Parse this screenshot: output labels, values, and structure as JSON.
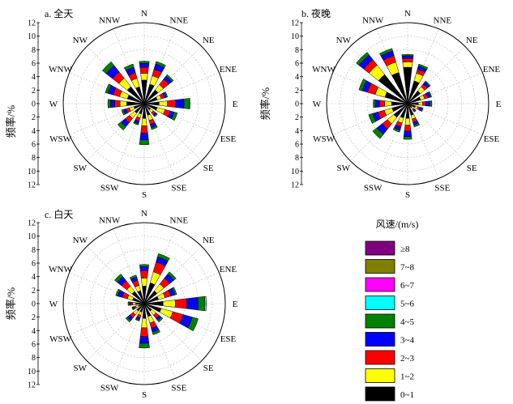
{
  "chart_data": {
    "type": "polar-stacked-bar",
    "directions": [
      "N",
      "NNE",
      "NE",
      "ENE",
      "E",
      "ESE",
      "SE",
      "SSE",
      "S",
      "SSW",
      "SW",
      "WSW",
      "W",
      "WNW",
      "NW",
      "NNW"
    ],
    "speed_classes": [
      "0~1",
      "1~2",
      "2~3",
      "3~4",
      "4~5",
      "5~6",
      "6~7",
      "7~8",
      "≥8"
    ],
    "class_colors": [
      "#000000",
      "#ffff00",
      "#ff0000",
      "#0000ff",
      "#008000",
      "#00ffff",
      "#ff00ff",
      "#808000",
      "#800080"
    ],
    "rlim": [
      0,
      12
    ],
    "radial_ticks": [
      0,
      2,
      4,
      6,
      8,
      10,
      12
    ],
    "axis_label": "频率/%",
    "legend_title": "风速/(m/s)",
    "legend_items": [
      "≥8",
      "7~8",
      "6~7",
      "5~6",
      "4~5",
      "3~4",
      "2~3",
      "1~2",
      "0~1"
    ],
    "panels": [
      {
        "title": "a. 全天",
        "series": [
          {
            "direction": "N",
            "values": [
              3.5,
              1.0,
              0.9,
              0.6,
              0.3,
              0,
              0,
              0,
              0
            ]
          },
          {
            "direction": "NNE",
            "values": [
              3.0,
              1.3,
              1.0,
              0.8,
              0.4,
              0,
              0,
              0,
              0
            ]
          },
          {
            "direction": "NE",
            "values": [
              2.6,
              1.0,
              1.0,
              0.6,
              0.3,
              0,
              0,
              0,
              0
            ]
          },
          {
            "direction": "ENE",
            "values": [
              2.0,
              0.6,
              0.5,
              0.3,
              0.2,
              0,
              0,
              0,
              0
            ]
          },
          {
            "direction": "E",
            "values": [
              2.2,
              1.2,
              1.2,
              1.3,
              0.8,
              0.1,
              0,
              0,
              0
            ]
          },
          {
            "direction": "ESE",
            "values": [
              2.0,
              1.2,
              0.8,
              0.6,
              0.5,
              0,
              0,
              0,
              0
            ]
          },
          {
            "direction": "SE",
            "values": [
              1.2,
              0.5,
              0.4,
              0.2,
              0.2,
              0,
              0,
              0,
              0
            ]
          },
          {
            "direction": "SSE",
            "values": [
              1.8,
              0.8,
              0.6,
              0.5,
              0.3,
              0,
              0,
              0,
              0
            ]
          },
          {
            "direction": "S",
            "values": [
              2.2,
              1.1,
              1.1,
              1.0,
              0.7,
              0,
              0,
              0,
              0
            ]
          },
          {
            "direction": "SSW",
            "values": [
              1.6,
              0.6,
              0.5,
              0.4,
              0.2,
              0,
              0,
              0,
              0
            ]
          },
          {
            "direction": "SW",
            "values": [
              1.8,
              1.0,
              0.8,
              0.8,
              0.6,
              0,
              0,
              0,
              0
            ]
          },
          {
            "direction": "WSW",
            "values": [
              1.6,
              0.7,
              0.5,
              0.4,
              0.3,
              0,
              0,
              0,
              0
            ]
          },
          {
            "direction": "W",
            "values": [
              2.6,
              1.0,
              0.8,
              0.6,
              0.4,
              0,
              0,
              0,
              0
            ]
          },
          {
            "direction": "WNW",
            "values": [
              2.6,
              1.2,
              1.0,
              0.8,
              0.4,
              0,
              0,
              0,
              0
            ]
          },
          {
            "direction": "NW",
            "values": [
              3.2,
              1.6,
              1.2,
              1.2,
              0.7,
              0,
              0,
              0,
              0
            ]
          },
          {
            "direction": "NNW",
            "values": [
              2.6,
              1.3,
              0.9,
              0.8,
              0.5,
              0,
              0,
              0,
              0
            ]
          }
        ]
      },
      {
        "title": "b. 夜晚",
        "series": [
          {
            "direction": "N",
            "values": [
              5.4,
              0.8,
              0.5,
              0.4,
              0.2,
              0,
              0,
              0,
              0
            ]
          },
          {
            "direction": "NNE",
            "values": [
              3.5,
              1.2,
              0.6,
              0.5,
              0.3,
              0,
              0,
              0,
              0
            ]
          },
          {
            "direction": "NE",
            "values": [
              2.4,
              0.8,
              0.5,
              0.4,
              0.2,
              0,
              0,
              0,
              0
            ]
          },
          {
            "direction": "ENE",
            "values": [
              2.0,
              0.6,
              0.5,
              0.4,
              0.2,
              0,
              0,
              0,
              0
            ]
          },
          {
            "direction": "E",
            "values": [
              1.6,
              0.6,
              0.5,
              0.6,
              0.3,
              0,
              0,
              0,
              0
            ]
          },
          {
            "direction": "ESE",
            "values": [
              1.2,
              0.4,
              0.3,
              0.3,
              0.2,
              0,
              0,
              0,
              0
            ]
          },
          {
            "direction": "SE",
            "values": [
              0.8,
              0.3,
              0.2,
              0.2,
              0.1,
              0,
              0,
              0,
              0
            ]
          },
          {
            "direction": "SSE",
            "values": [
              1.8,
              0.6,
              0.5,
              0.4,
              0.3,
              0,
              0,
              0,
              0
            ]
          },
          {
            "direction": "S",
            "values": [
              2.2,
              1.0,
              0.9,
              0.8,
              0.4,
              0,
              0,
              0,
              0
            ]
          },
          {
            "direction": "SSW",
            "values": [
              2.2,
              0.8,
              0.6,
              0.5,
              0.3,
              0,
              0,
              0,
              0
            ]
          },
          {
            "direction": "SW",
            "values": [
              2.6,
              1.2,
              1.0,
              1.0,
              0.8,
              0,
              0,
              0,
              0
            ]
          },
          {
            "direction": "WSW",
            "values": [
              2.4,
              1.2,
              1.0,
              0.8,
              0.6,
              0,
              0,
              0,
              0
            ]
          },
          {
            "direction": "W",
            "values": [
              2.4,
              1.0,
              0.8,
              0.6,
              0.3,
              0,
              0,
              0,
              0
            ]
          },
          {
            "direction": "WNW",
            "values": [
              3.5,
              1.5,
              1.2,
              0.8,
              0.5,
              0,
              0,
              0,
              0
            ]
          },
          {
            "direction": "NW",
            "values": [
              5.5,
              1.8,
              1.0,
              0.9,
              0.5,
              0,
              0,
              0,
              0
            ]
          },
          {
            "direction": "NNW",
            "values": [
              4.8,
              1.6,
              1.0,
              0.7,
              0.4,
              0,
              0,
              0,
              0
            ]
          }
        ]
      },
      {
        "title": "c. 白天",
        "series": [
          {
            "direction": "N",
            "values": [
              2.6,
              1.2,
              1.1,
              0.6,
              0.3,
              0,
              0,
              0,
              0
            ]
          },
          {
            "direction": "NNE",
            "values": [
              3.2,
              1.7,
              1.5,
              0.8,
              0.5,
              0,
              0,
              0,
              0
            ]
          },
          {
            "direction": "NE",
            "values": [
              2.4,
              1.3,
              1.1,
              0.8,
              0.4,
              0,
              0,
              0,
              0
            ]
          },
          {
            "direction": "ENE",
            "values": [
              2.2,
              1.0,
              0.9,
              0.6,
              0.3,
              0,
              0,
              0,
              0
            ]
          },
          {
            "direction": "E",
            "values": [
              2.8,
              1.8,
              1.7,
              1.7,
              1.0,
              0.2,
              0,
              0,
              0
            ]
          },
          {
            "direction": "ESE",
            "values": [
              2.6,
              1.8,
              1.6,
              1.4,
              0.9,
              0,
              0,
              0,
              0
            ]
          },
          {
            "direction": "SE",
            "values": [
              1.4,
              0.8,
              0.6,
              0.4,
              0.3,
              0,
              0,
              0,
              0
            ]
          },
          {
            "direction": "SSE",
            "values": [
              2.0,
              1.0,
              0.8,
              0.6,
              0.4,
              0,
              0,
              0,
              0
            ]
          },
          {
            "direction": "S",
            "values": [
              2.2,
              1.4,
              1.3,
              1.0,
              0.7,
              0,
              0,
              0,
              0
            ]
          },
          {
            "direction": "SSW",
            "values": [
              1.3,
              0.5,
              0.4,
              0.3,
              0.2,
              0,
              0,
              0,
              0
            ]
          },
          {
            "direction": "SW",
            "values": [
              1.4,
              0.7,
              0.6,
              0.5,
              0.3,
              0,
              0,
              0,
              0
            ]
          },
          {
            "direction": "WSW",
            "values": [
              0.9,
              0.4,
              0.3,
              0.2,
              0.1,
              0,
              0,
              0,
              0
            ]
          },
          {
            "direction": "W",
            "values": [
              1.3,
              0.4,
              0.3,
              0.2,
              0.2,
              0,
              0,
              0,
              0
            ]
          },
          {
            "direction": "WNW",
            "values": [
              1.8,
              0.8,
              0.8,
              0.7,
              0.3,
              0,
              0,
              0,
              0
            ]
          },
          {
            "direction": "NW",
            "values": [
              2.3,
              1.0,
              1.0,
              0.8,
              0.5,
              0,
              0,
              0,
              0
            ]
          },
          {
            "direction": "NNW",
            "values": [
              2.0,
              0.8,
              0.8,
              0.5,
              0.3,
              0,
              0,
              0,
              0
            ]
          }
        ]
      }
    ]
  }
}
